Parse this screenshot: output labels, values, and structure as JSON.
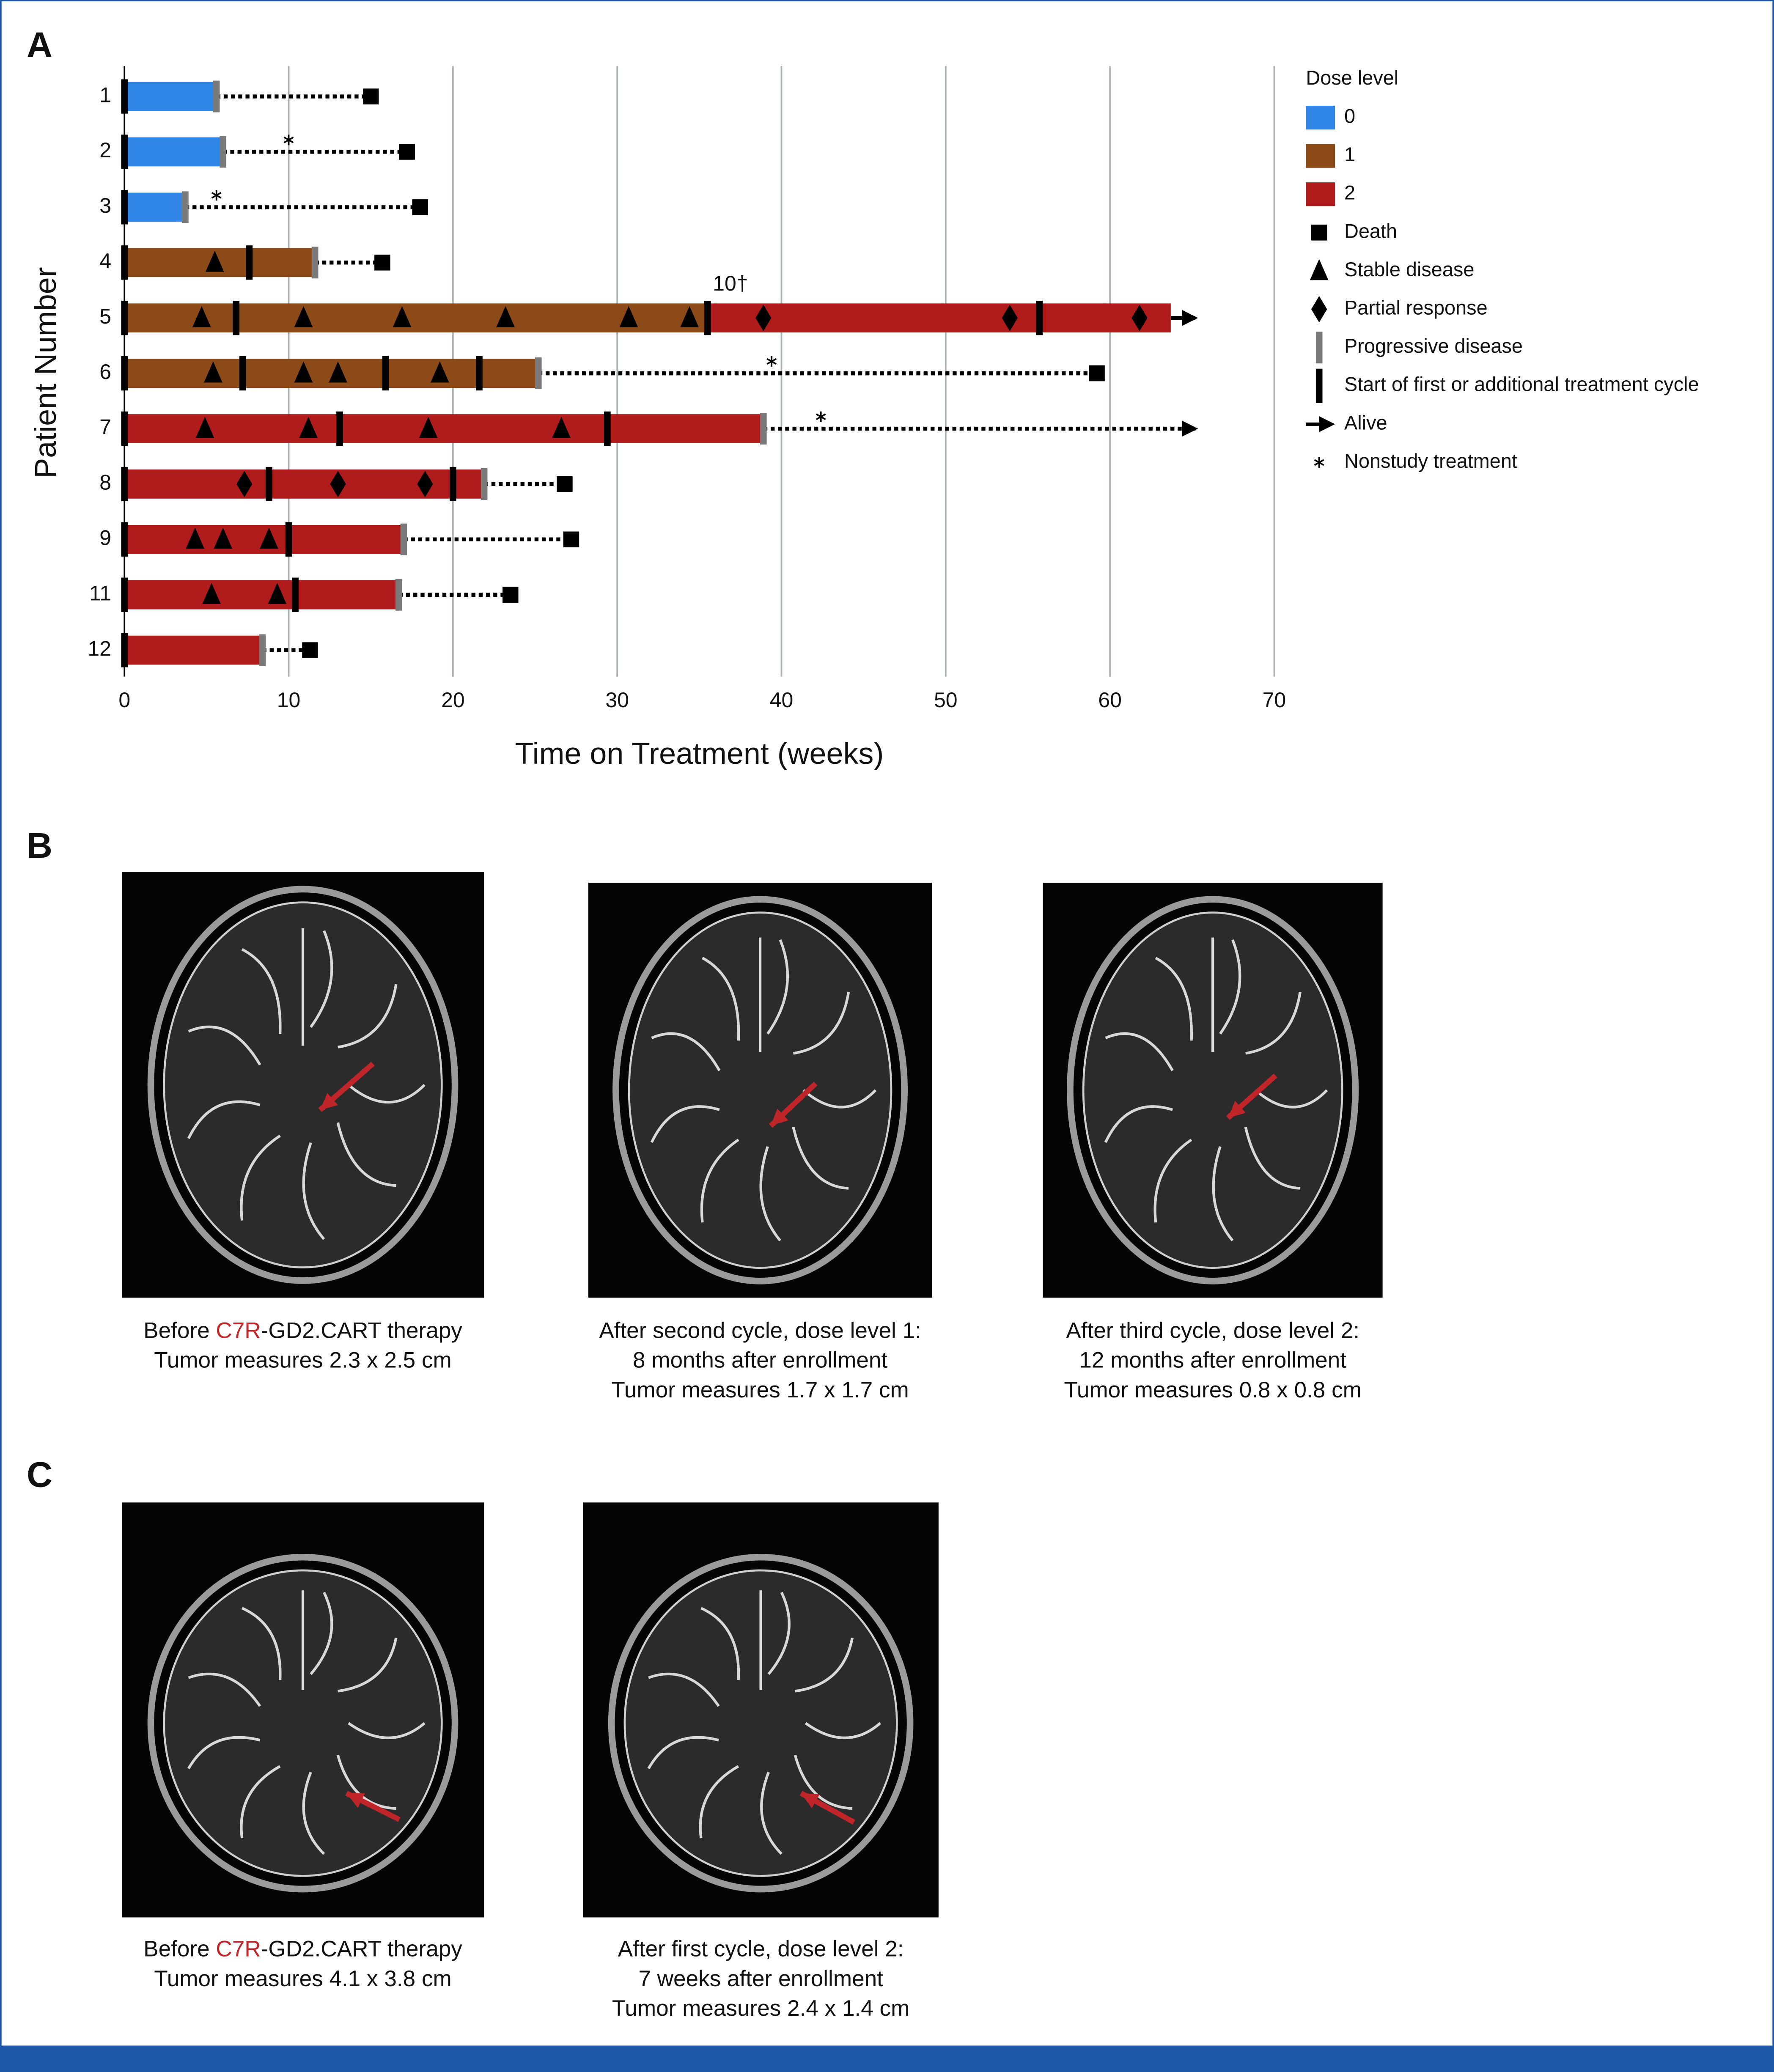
{
  "panels": {
    "a": "A",
    "b": "B",
    "c": "C"
  },
  "chart_data": {
    "type": "swimmer",
    "xlabel": "Time on Treatment (weeks)",
    "ylabel": "Patient Number",
    "xlim": [
      0,
      70
    ],
    "xticks": [
      0,
      10,
      20,
      30,
      40,
      50,
      60,
      70
    ],
    "grid": true,
    "dose_colors": {
      "0": "#2f86e6",
      "1": "#8b4a17",
      "2": "#b01b1b"
    },
    "marker_colors": {
      "progression": "#7a7a7a",
      "cycle": "#000000",
      "death": "#000000"
    },
    "patients": [
      {
        "label": "1",
        "segments": [
          {
            "dose": "0",
            "start": 0,
            "end": 5.6
          }
        ],
        "cycles": [
          0
        ],
        "progression": 5.6,
        "death": 15.0
      },
      {
        "label": "2",
        "segments": [
          {
            "dose": "0",
            "start": 0,
            "end": 6.0
          }
        ],
        "cycles": [
          0
        ],
        "progression": 6.0,
        "nonstudy": [
          10.0
        ],
        "death": 17.2
      },
      {
        "label": "3",
        "segments": [
          {
            "dose": "0",
            "start": 0,
            "end": 3.7
          }
        ],
        "cycles": [
          0
        ],
        "progression": 3.7,
        "nonstudy": [
          5.6
        ],
        "death": 18.0
      },
      {
        "label": "4",
        "segments": [
          {
            "dose": "1",
            "start": 0,
            "end": 11.6
          }
        ],
        "cycles": [
          0,
          7.6
        ],
        "stable": [
          5.5
        ],
        "progression": 11.6,
        "death": 15.7
      },
      {
        "label": "5",
        "segments": [
          {
            "dose": "1",
            "start": 0,
            "end": 35.5
          },
          {
            "dose": "2",
            "start": 35.5,
            "end": 63.7
          }
        ],
        "cycles": [
          0,
          6.8,
          35.5,
          55.7
        ],
        "stable": [
          4.7,
          10.9,
          16.9,
          23.2,
          30.7,
          34.4
        ],
        "partial": [
          38.9,
          53.9,
          61.8
        ],
        "alive": 65.2,
        "annotation": "10†"
      },
      {
        "label": "6",
        "segments": [
          {
            "dose": "1",
            "start": 0,
            "end": 25.2
          }
        ],
        "cycles": [
          0,
          7.2,
          15.9,
          21.6
        ],
        "stable": [
          5.4,
          10.9,
          13.0,
          19.2
        ],
        "progression": 25.2,
        "nonstudy": [
          39.4
        ],
        "death": 59.2
      },
      {
        "label": "7",
        "segments": [
          {
            "dose": "2",
            "start": 0,
            "end": 38.9
          }
        ],
        "cycles": [
          0,
          13.1,
          29.4
        ],
        "stable": [
          4.9,
          11.2,
          18.5,
          26.6
        ],
        "progression": 38.9,
        "nonstudy": [
          42.4
        ],
        "alive": 65.2
      },
      {
        "label": "8",
        "segments": [
          {
            "dose": "2",
            "start": 0,
            "end": 21.9
          }
        ],
        "cycles": [
          0,
          8.8,
          20.0
        ],
        "partial": [
          7.3,
          13.0,
          18.3
        ],
        "progression": 21.9,
        "death": 26.8
      },
      {
        "label": "9",
        "segments": [
          {
            "dose": "2",
            "start": 0,
            "end": 17.0
          }
        ],
        "cycles": [
          0,
          10.0
        ],
        "stable": [
          4.3,
          6.0,
          8.8
        ],
        "progression": 17.0,
        "death": 27.2
      },
      {
        "label": "11",
        "segments": [
          {
            "dose": "2",
            "start": 0,
            "end": 16.7
          }
        ],
        "cycles": [
          0,
          10.4
        ],
        "stable": [
          5.3,
          9.3
        ],
        "progression": 16.7,
        "death": 23.5
      },
      {
        "label": "12",
        "segments": [
          {
            "dose": "2",
            "start": 0,
            "end": 8.4
          }
        ],
        "cycles": [
          0
        ],
        "progression": 8.4,
        "death": 11.3
      }
    ],
    "legend": {
      "title": "Dose level",
      "doses": [
        "0",
        "1",
        "2"
      ],
      "markers": {
        "death": "Death",
        "stable": "Stable disease",
        "partial": "Partial response",
        "progression": "Progressive disease",
        "cycle": "Start of first or additional treatment cycle",
        "alive": "Alive",
        "nonstudy": "Nonstudy treatment"
      }
    }
  },
  "images_b": [
    {
      "lines": [
        {
          "prefix": "Before ",
          "highlight": "C7R",
          "suffix": "-GD2.CART therapy"
        },
        "Tumor measures 2.3 x 2.5 cm"
      ]
    },
    {
      "lines": [
        "After second cycle, dose level 1:",
        "8 months after enrollment",
        "Tumor measures 1.7 x 1.7 cm"
      ]
    },
    {
      "lines": [
        "After third cycle, dose level 2:",
        "12 months after enrollment",
        "Tumor measures 0.8 x 0.8 cm"
      ]
    }
  ],
  "images_c": [
    {
      "lines": [
        {
          "prefix": "Before ",
          "highlight": "C7R",
          "suffix": "-GD2.CART therapy"
        },
        "Tumor measures 4.1 x 3.8 cm"
      ]
    },
    {
      "lines": [
        "After first cycle, dose level 2:",
        "7 weeks after enrollment",
        "Tumor measures 2.4 x 1.4 cm"
      ]
    }
  ]
}
